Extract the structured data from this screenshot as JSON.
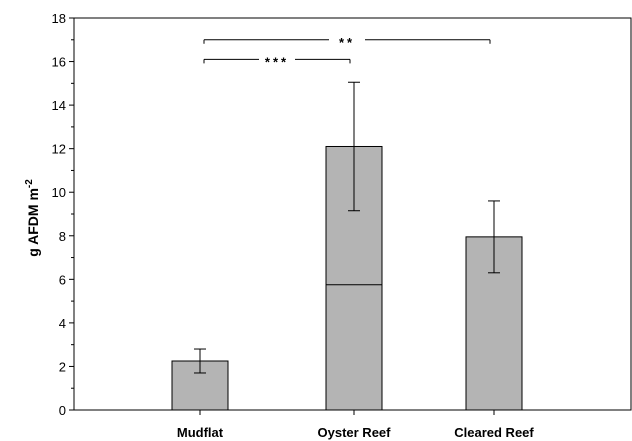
{
  "chart_data": {
    "type": "bar",
    "categories": [
      "Mudflat",
      "Oyster Reef",
      "Cleared Reef"
    ],
    "values": [
      2.25,
      12.1,
      7.95
    ],
    "error": [
      0.55,
      2.95,
      1.65
    ],
    "inner_line": [
      null,
      5.75,
      null
    ],
    "ylabel_main": "g AFDM m",
    "ylabel_sup": "-2",
    "ylim": [
      0,
      18
    ],
    "yticks": [
      0,
      2,
      4,
      6,
      8,
      10,
      12,
      14,
      16,
      18
    ],
    "grid": false,
    "significance": [
      {
        "from": 0,
        "to": 2,
        "label": "**",
        "y": 17.0
      },
      {
        "from": 0,
        "to": 1,
        "label": "***",
        "y": 16.1
      }
    ],
    "colors": {
      "bar": "#b4b4b4",
      "stroke": "#000000"
    }
  }
}
